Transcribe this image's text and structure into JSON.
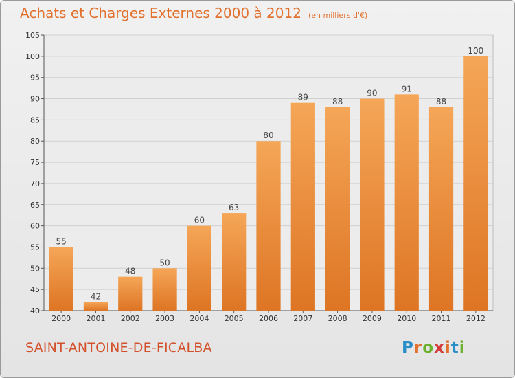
{
  "header": {
    "title": "Achats et Charges Externes 2000 à 2012",
    "unit": "(en milliers d'€)"
  },
  "commune_name": "SAINT-ANTOINE-DE-FICALBA",
  "logo": {
    "text": "Proxiti",
    "letter_colors": [
      "#2a8fc9",
      "#e2702d",
      "#6bb12e",
      "#d43b3b",
      "#e2702d",
      "#2a8fc9",
      "#6bb12e"
    ]
  },
  "colors": {
    "bar_top": "#f5a657",
    "bar_bottom": "#dd7524",
    "title": "#e2702d",
    "commune": "#d2502a"
  },
  "chart_data": {
    "type": "bar",
    "categories": [
      "2000",
      "2001",
      "2002",
      "2003",
      "2004",
      "2005",
      "2006",
      "2007",
      "2008",
      "2009",
      "2010",
      "2011",
      "2012"
    ],
    "values": [
      55,
      42,
      48,
      50,
      60,
      63,
      80,
      89,
      88,
      90,
      91,
      88,
      100
    ],
    "ylim": [
      40,
      105
    ],
    "yticks": [
      40,
      45,
      50,
      55,
      60,
      65,
      70,
      75,
      80,
      85,
      90,
      95,
      100,
      105
    ],
    "grid": true,
    "data_labels": true
  }
}
